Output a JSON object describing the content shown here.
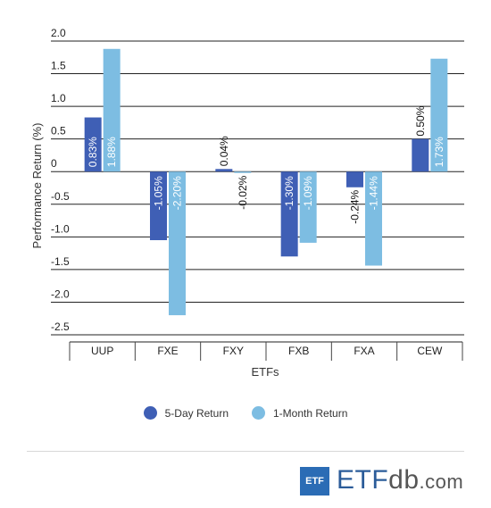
{
  "chart_data": {
    "type": "bar",
    "xlabel": "ETFs",
    "ylabel": "Performance Return (%)",
    "ylim": [
      -2.5,
      2.0
    ],
    "yticks": [
      "2.0",
      "1.5",
      "1.0",
      "0.5",
      "0",
      "-0.5",
      "-1.0",
      "-1.5",
      "-2.0",
      "-2.5"
    ],
    "categories": [
      "UUP",
      "FXE",
      "FXY",
      "FXB",
      "FXA",
      "CEW"
    ],
    "series": [
      {
        "name": "5-Day Return",
        "color": "#3f5fb5",
        "values": [
          0.83,
          -1.05,
          0.04,
          -1.3,
          -0.24,
          0.5
        ],
        "labels": [
          "0.83%",
          "-1.05%",
          "0.04%",
          "-1.30%",
          "-0.24%",
          "0.50%"
        ]
      },
      {
        "name": "1-Month Return",
        "color": "#7dbde2",
        "values": [
          1.88,
          -2.2,
          -0.02,
          -1.09,
          -1.44,
          1.73
        ],
        "labels": [
          "1.88%",
          "-2.20%",
          "-0.02%",
          "-1.09%",
          "-1.44%",
          "1.73%"
        ]
      }
    ],
    "grid": true,
    "legend_position": "bottom-center"
  },
  "legend": [
    {
      "label": "5-Day Return",
      "color": "#3f5fb5"
    },
    {
      "label": "1-Month Return",
      "color": "#7dbde2"
    }
  ],
  "brand": {
    "badge": "ETF",
    "main": "ETF",
    "db": "db",
    "com": ".com"
  }
}
